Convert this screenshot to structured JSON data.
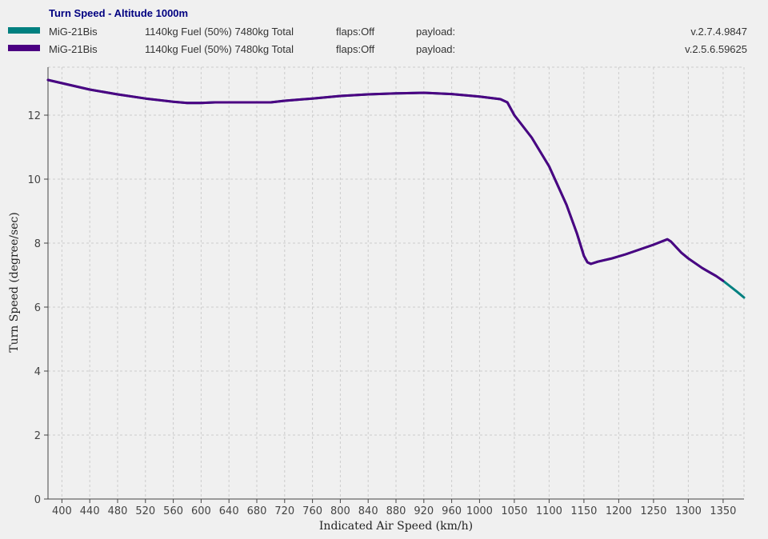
{
  "chart_data": {
    "type": "line",
    "title": "Turn Speed - Altitude 1000m",
    "xlabel": "Indicated Air Speed (km/h)",
    "ylabel": "Turn Speed (degree/sec)",
    "xlim": [
      380,
      1380
    ],
    "ylim": [
      0,
      13.5
    ],
    "xticks": [
      400,
      440,
      480,
      520,
      560,
      600,
      640,
      680,
      720,
      760,
      800,
      840,
      880,
      920,
      960,
      1000,
      1050,
      1100,
      1150,
      1200,
      1250,
      1300,
      1350
    ],
    "yticks": [
      0,
      2,
      4,
      6,
      8,
      10,
      12
    ],
    "grid": true,
    "series": [
      {
        "name": "MiG-21Bis",
        "load": "1140kg Fuel (50%) 7480kg Total",
        "flaps": "flaps:Off",
        "payload": "payload:",
        "version": "v.2.7.4.9847",
        "color": "#008080",
        "points": [
          [
            380,
            13.1
          ],
          [
            400,
            13.0
          ],
          [
            440,
            12.8
          ],
          [
            480,
            12.65
          ],
          [
            520,
            12.52
          ],
          [
            560,
            12.42
          ],
          [
            580,
            12.38
          ],
          [
            600,
            12.38
          ],
          [
            620,
            12.4
          ],
          [
            660,
            12.4
          ],
          [
            700,
            12.4
          ],
          [
            720,
            12.45
          ],
          [
            760,
            12.52
          ],
          [
            800,
            12.6
          ],
          [
            840,
            12.65
          ],
          [
            880,
            12.68
          ],
          [
            920,
            12.7
          ],
          [
            960,
            12.66
          ],
          [
            1000,
            12.58
          ],
          [
            1030,
            12.5
          ],
          [
            1040,
            12.4
          ],
          [
            1050,
            12.0
          ],
          [
            1075,
            11.3
          ],
          [
            1100,
            10.4
          ],
          [
            1125,
            9.2
          ],
          [
            1140,
            8.3
          ],
          [
            1150,
            7.6
          ],
          [
            1155,
            7.4
          ],
          [
            1160,
            7.35
          ],
          [
            1170,
            7.42
          ],
          [
            1190,
            7.52
          ],
          [
            1210,
            7.65
          ],
          [
            1230,
            7.8
          ],
          [
            1250,
            7.95
          ],
          [
            1270,
            8.12
          ],
          [
            1275,
            8.05
          ],
          [
            1290,
            7.7
          ],
          [
            1300,
            7.52
          ],
          [
            1320,
            7.22
          ],
          [
            1340,
            6.97
          ],
          [
            1350,
            6.82
          ],
          [
            1360,
            6.65
          ],
          [
            1370,
            6.48
          ],
          [
            1380,
            6.3
          ]
        ]
      },
      {
        "name": "MiG-21Bis",
        "load": "1140kg Fuel (50%) 7480kg Total",
        "flaps": "flaps:Off",
        "payload": "payload:",
        "version": "v.2.5.6.59625",
        "color": "#4b0082",
        "points": [
          [
            380,
            13.1
          ],
          [
            400,
            13.0
          ],
          [
            440,
            12.8
          ],
          [
            480,
            12.65
          ],
          [
            520,
            12.52
          ],
          [
            560,
            12.42
          ],
          [
            580,
            12.38
          ],
          [
            600,
            12.38
          ],
          [
            620,
            12.4
          ],
          [
            660,
            12.4
          ],
          [
            700,
            12.4
          ],
          [
            720,
            12.45
          ],
          [
            760,
            12.52
          ],
          [
            800,
            12.6
          ],
          [
            840,
            12.65
          ],
          [
            880,
            12.68
          ],
          [
            920,
            12.7
          ],
          [
            960,
            12.66
          ],
          [
            1000,
            12.58
          ],
          [
            1030,
            12.5
          ],
          [
            1040,
            12.4
          ],
          [
            1050,
            12.0
          ],
          [
            1075,
            11.3
          ],
          [
            1100,
            10.4
          ],
          [
            1125,
            9.2
          ],
          [
            1140,
            8.3
          ],
          [
            1150,
            7.6
          ],
          [
            1155,
            7.4
          ],
          [
            1160,
            7.35
          ],
          [
            1170,
            7.42
          ],
          [
            1190,
            7.52
          ],
          [
            1210,
            7.65
          ],
          [
            1230,
            7.8
          ],
          [
            1250,
            7.95
          ],
          [
            1270,
            8.12
          ],
          [
            1275,
            8.05
          ],
          [
            1290,
            7.7
          ],
          [
            1300,
            7.52
          ],
          [
            1320,
            7.22
          ],
          [
            1340,
            6.97
          ],
          [
            1350,
            6.82
          ]
        ]
      }
    ]
  }
}
